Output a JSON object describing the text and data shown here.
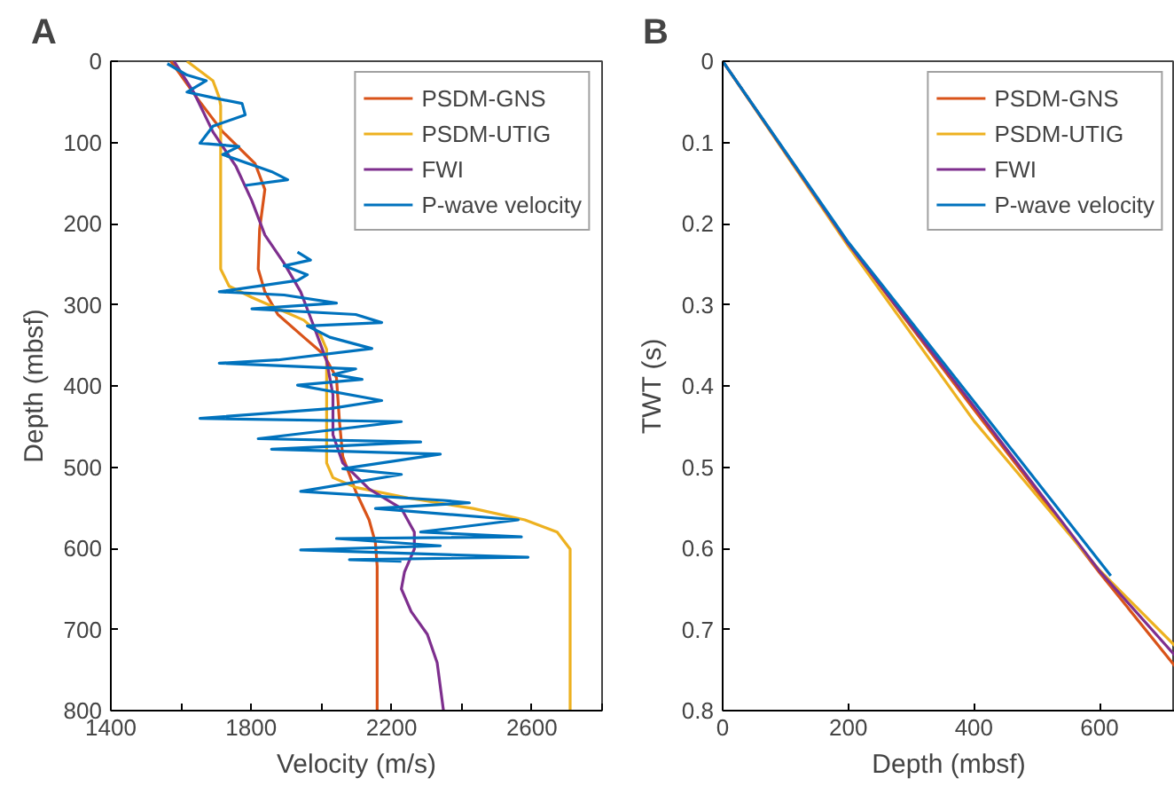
{
  "chart_data": [
    {
      "type": "line",
      "title": "A",
      "xlabel": "Velocity (m/s)",
      "ylabel": "Depth (mbsf)",
      "xlim": [
        1400,
        2800
      ],
      "ylim": [
        800,
        0
      ],
      "xticks": [
        1400,
        {
          "value": 1600,
          "label": null
        },
        1800,
        {
          "value": 2000,
          "label": null
        },
        2200,
        {
          "value": 2400,
          "label": null
        },
        2600,
        {
          "value": 2800,
          "label": null
        }
      ],
      "yticks": [
        0,
        100,
        200,
        300,
        400,
        500,
        600,
        700,
        800
      ],
      "grid": false,
      "legend": "top right",
      "line_style": "solid",
      "marker": "none",
      "series": [
        {
          "name": "PSDM-GNS",
          "color": "#d95319",
          "x": [
            1571,
            1645,
            1719,
            1811,
            1839,
            1824,
            1820,
            1839,
            1876,
            1950,
            2006,
            2043,
            2052,
            2061,
            2098,
            2136,
            2154,
            2159,
            2159
          ],
          "values": [
            0,
            45,
            87,
            126,
            158,
            207,
            256,
            284,
            312,
            340,
            361,
            390,
            446,
            487,
            530,
            565,
            593,
            622,
            800
          ]
        },
        {
          "name": "PSDM-UTIG",
          "color": "#edb120",
          "x": [
            1617,
            1691,
            1709,
            1713,
            1713,
            1737,
            1802,
            1876,
            1950,
            1997,
            2015,
            2015,
            2015,
            2033,
            2098,
            2247,
            2432,
            2580,
            2672,
            2709,
            2709
          ],
          "values": [
            0,
            24,
            45,
            55,
            256,
            277,
            291,
            305,
            319,
            337,
            355,
            397,
            495,
            513,
            525,
            538,
            551,
            565,
            580,
            601,
            800
          ]
        },
        {
          "name": "FWI",
          "color": "#7e2f8e",
          "x": [
            1580,
            1636,
            1691,
            1756,
            1802,
            1839,
            1894,
            1941,
            1978,
            2015,
            2033,
            2033,
            2061,
            2136,
            2228,
            2265,
            2265,
            2237,
            2228,
            2256,
            2302,
            2330,
            2348
          ],
          "values": [
            0,
            38,
            87,
            129,
            172,
            214,
            249,
            284,
            326,
            369,
            411,
            460,
            495,
            527,
            551,
            580,
            601,
            629,
            650,
            678,
            706,
            741,
            800
          ]
        },
        {
          "name": "P-wave velocity",
          "color": "#0072bd",
          "x": [
            1561,
            1617,
            1672,
            1617,
            1691,
            1774,
            1783,
            1691,
            1654,
            1765,
            1719,
            1858,
            1904,
            1783,
            null,
            1932,
            1969,
            1894,
            1960,
            1932,
            1709,
            1894,
            2043,
            1802,
            2098,
            2172,
            1960,
            2024,
            2144,
            1876,
            1709,
            2098,
            2033,
            2116,
            1932,
            2172,
            2024,
            1654,
            2228,
            1820,
            2283,
            1858,
            2339,
            2061,
            2228,
            1941,
            2348,
            2422,
            2154,
            2561,
            2283,
            2570,
            2043,
            2339,
            1941,
            2589,
            2080,
            2228
          ],
          "values": [
            3,
            17,
            24,
            38,
            45,
            52,
            66,
            80,
            101,
            105,
            115,
            136,
            146,
            153,
            null,
            235,
            245,
            252,
            263,
            270,
            284,
            288,
            298,
            305,
            312,
            322,
            326,
            340,
            354,
            368,
            372,
            379,
            386,
            392,
            399,
            418,
            428,
            440,
            444,
            465,
            469,
            478,
            484,
            502,
            509,
            530,
            541,
            544,
            551,
            565,
            580,
            586,
            588,
            597,
            602,
            611,
            614,
            616
          ]
        }
      ]
    },
    {
      "type": "line",
      "title": "B",
      "xlabel": "Depth (mbsf)",
      "ylabel": "TWT (s)",
      "xlim": [
        0,
        720
      ],
      "ylim": [
        0.8,
        0
      ],
      "xticks": [
        0,
        200,
        400,
        600
      ],
      "yticks": [
        0,
        0.1,
        0.2,
        0.3,
        0.4,
        0.5,
        0.6,
        0.7,
        0.8
      ],
      "grid": false,
      "legend": "top right",
      "line_style": "solid",
      "marker": "none",
      "series": [
        {
          "name": "PSDM-GNS",
          "color": "#d95319",
          "x": [
            0,
            200,
            400,
            600,
            720
          ],
          "values": [
            0,
            0.225,
            0.429,
            0.63,
            0.745
          ]
        },
        {
          "name": "PSDM-UTIG",
          "color": "#edb120",
          "x": [
            0,
            200,
            400,
            600,
            720
          ],
          "values": [
            0,
            0.228,
            0.443,
            0.627,
            0.72
          ]
        },
        {
          "name": "FWI",
          "color": "#7e2f8e",
          "x": [
            0,
            200,
            400,
            600,
            720
          ],
          "values": [
            0,
            0.225,
            0.425,
            0.628,
            0.732
          ]
        },
        {
          "name": "P-wave velocity",
          "color": "#0072bd",
          "x": [
            0,
            200,
            400,
            618
          ],
          "values": [
            0,
            0.223,
            0.419,
            0.634
          ]
        }
      ]
    }
  ]
}
